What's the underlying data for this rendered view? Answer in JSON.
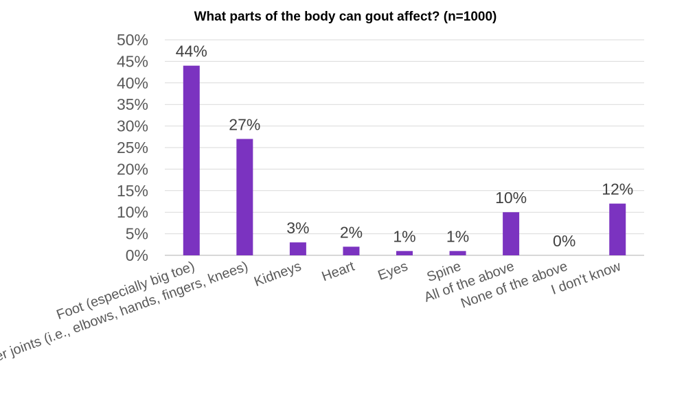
{
  "chart_data": {
    "type": "bar",
    "title": "What parts of the body can gout affect? (n=1000)",
    "categories": [
      "Foot (especially big toe)",
      "Other joints (i.e., elbows, hands, fingers, knees)",
      "Kidneys",
      "Heart",
      "Eyes",
      "Spine",
      "All of the above",
      "None of the above",
      "I don't know"
    ],
    "values": [
      44,
      27,
      3,
      2,
      1,
      1,
      10,
      0,
      12
    ],
    "value_labels": [
      "44%",
      "27%",
      "3%",
      "2%",
      "1%",
      "1%",
      "10%",
      "0%",
      "12%"
    ],
    "ylim": [
      0,
      50
    ],
    "yticks": [
      "0%",
      "5%",
      "10%",
      "15%",
      "20%",
      "25%",
      "30%",
      "35%",
      "40%",
      "45%",
      "50%"
    ],
    "xlabel": "",
    "ylabel": "",
    "grid": true,
    "legend": "none",
    "colors": {
      "bar": "#7b33c0"
    }
  }
}
